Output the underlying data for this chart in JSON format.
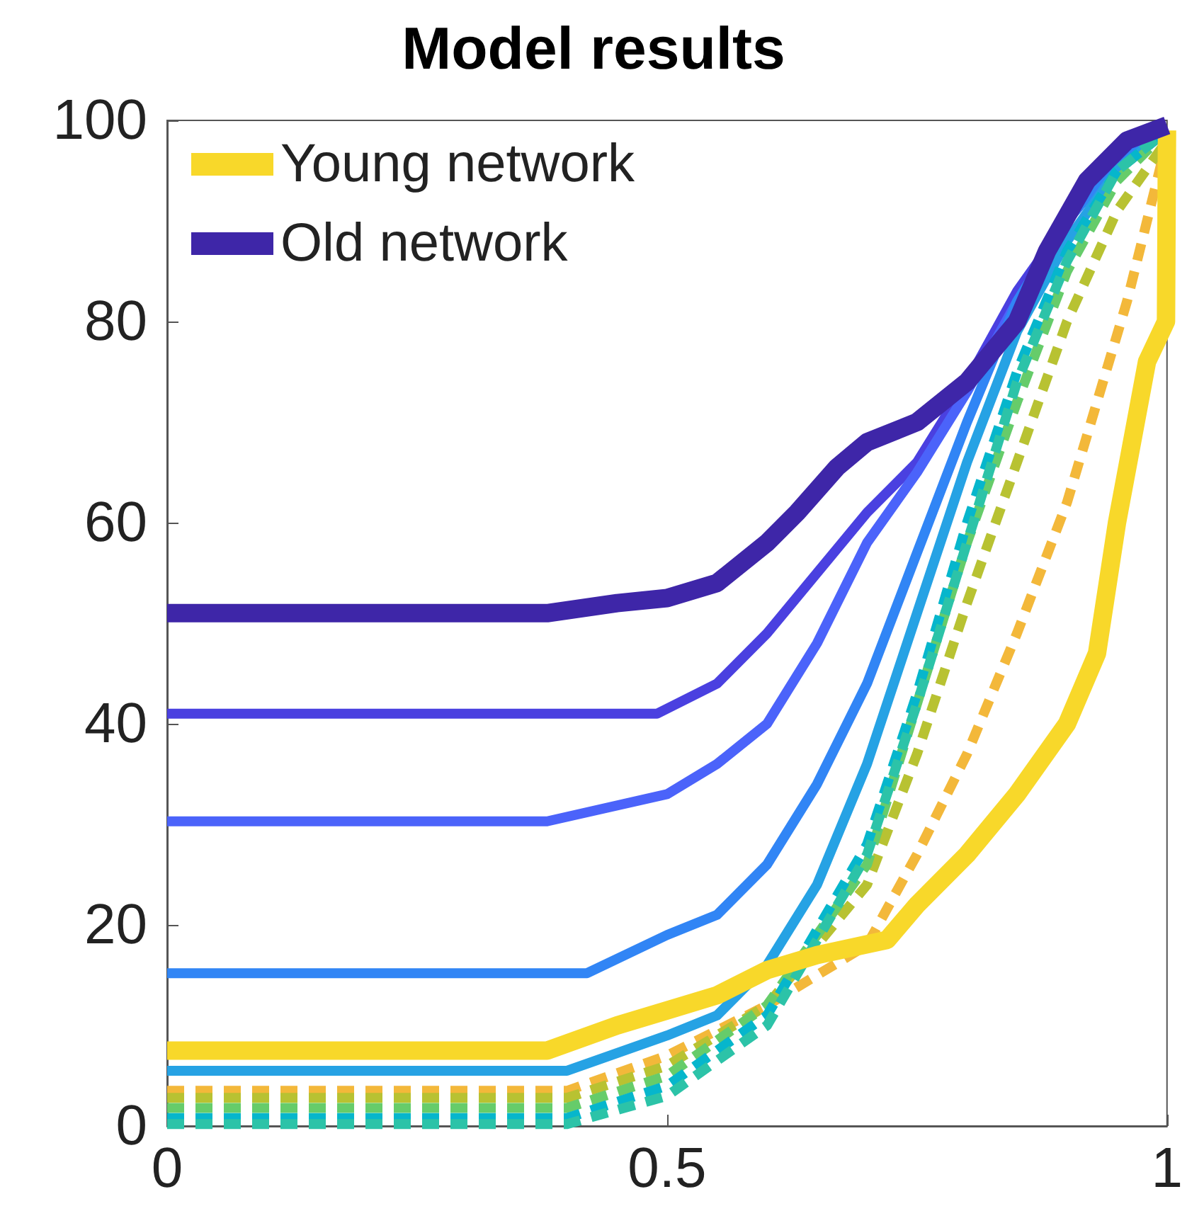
{
  "chart_data": {
    "type": "line",
    "title": "Model results",
    "xlim": [
      0,
      1
    ],
    "xticks": [
      0,
      0.5,
      1
    ],
    "ylim": [
      0,
      100
    ],
    "yticks": [
      0,
      20,
      40,
      60,
      80,
      100
    ],
    "grid": false,
    "legend": "top left",
    "marker": "none",
    "series": [
      {
        "name": "Young network",
        "color": "#f8d82a",
        "line_style": "solid",
        "x": [
          0,
          0.38,
          0.45,
          0.5,
          0.55,
          0.6,
          0.65,
          0.72,
          0.75,
          0.8,
          0.85,
          0.9,
          0.93,
          0.95,
          0.98,
          0.999,
          1
        ],
        "values": [
          7.5,
          7.5,
          10,
          11.5,
          13,
          15.5,
          17,
          18.5,
          22,
          27,
          33,
          40,
          47,
          60,
          76,
          80,
          99
        ]
      },
      {
        "name": "Old network",
        "color": "#3e26a8",
        "line_style": "solid",
        "x": [
          0,
          0.38,
          0.45,
          0.5,
          0.55,
          0.6,
          0.63,
          0.67,
          0.7,
          0.75,
          0.8,
          0.85,
          0.88,
          0.92,
          0.96,
          1
        ],
        "values": [
          51,
          51,
          52,
          52.5,
          54,
          58,
          61,
          65.5,
          68,
          70,
          74,
          80,
          87,
          94,
          98,
          99.5
        ]
      },
      {
        "color": "#4a40e0",
        "line_style": "solid",
        "x": [
          0,
          0.49,
          0.55,
          0.6,
          0.65,
          0.7,
          0.75,
          0.8,
          0.85,
          0.9,
          0.95,
          1
        ],
        "values": [
          41,
          41,
          44,
          49,
          55,
          61,
          66,
          74,
          83,
          90,
          96,
          99
        ]
      },
      {
        "color": "#4b63fa",
        "line_style": "solid",
        "x": [
          0,
          0.38,
          0.5,
          0.55,
          0.6,
          0.65,
          0.7,
          0.75,
          0.8,
          0.85,
          0.9,
          0.95,
          1
        ],
        "values": [
          30.3,
          30.3,
          33,
          36,
          40,
          48,
          58,
          65,
          73,
          82,
          90,
          96,
          99
        ]
      },
      {
        "color": "#3185f5",
        "line_style": "solid",
        "x": [
          0,
          0.42,
          0.5,
          0.55,
          0.6,
          0.65,
          0.7,
          0.75,
          0.8,
          0.85,
          0.9,
          0.95,
          1
        ],
        "values": [
          15.2,
          15.2,
          19,
          21,
          26,
          34,
          44,
          57,
          70,
          82,
          90,
          96,
          99
        ]
      },
      {
        "color": "#26a2e4",
        "line_style": "solid",
        "x": [
          0,
          0.4,
          0.5,
          0.55,
          0.6,
          0.65,
          0.7,
          0.75,
          0.8,
          0.85,
          0.9,
          0.95,
          1
        ],
        "values": [
          5.5,
          5.5,
          9,
          11,
          16,
          24,
          36,
          51,
          66,
          79,
          88,
          95,
          99
        ]
      },
      {
        "color": "#f3b83a",
        "line_style": "dashed",
        "x": [
          0,
          0.4,
          0.5,
          0.6,
          0.7,
          0.75,
          0.8,
          0.85,
          0.9,
          0.93,
          0.96,
          1
        ],
        "values": [
          3.5,
          3.5,
          7,
          12,
          18,
          27,
          37,
          49,
          62,
          72,
          82,
          98
        ]
      },
      {
        "color": "#b8c232",
        "line_style": "dashed",
        "x": [
          0,
          0.4,
          0.5,
          0.6,
          0.7,
          0.75,
          0.8,
          0.85,
          0.9,
          0.95,
          1
        ],
        "values": [
          2.8,
          2.8,
          6,
          12,
          24,
          37,
          52,
          66,
          80,
          91,
          98
        ]
      },
      {
        "color": "#66cc6a",
        "line_style": "dashed",
        "x": [
          0,
          0.4,
          0.5,
          0.6,
          0.7,
          0.75,
          0.8,
          0.85,
          0.9,
          0.95,
          1
        ],
        "values": [
          1.8,
          1.8,
          5,
          12,
          26,
          42,
          58,
          72,
          85,
          94,
          99
        ]
      },
      {
        "color": "#06b6cc",
        "line_style": "dashed",
        "x": [
          0,
          0.4,
          0.5,
          0.6,
          0.7,
          0.75,
          0.8,
          0.85,
          0.9,
          0.95,
          1
        ],
        "values": [
          0.8,
          0.8,
          4,
          11,
          28,
          43,
          60,
          75,
          87,
          95,
          99
        ]
      },
      {
        "color": "#2cc3a8",
        "line_style": "dashed",
        "x": [
          0,
          0.4,
          0.5,
          0.6,
          0.7,
          0.75,
          0.8,
          0.85,
          0.9,
          0.95,
          1
        ],
        "values": [
          0.2,
          0.2,
          3,
          10,
          27,
          42,
          58,
          74,
          86,
          95,
          99
        ]
      }
    ]
  }
}
